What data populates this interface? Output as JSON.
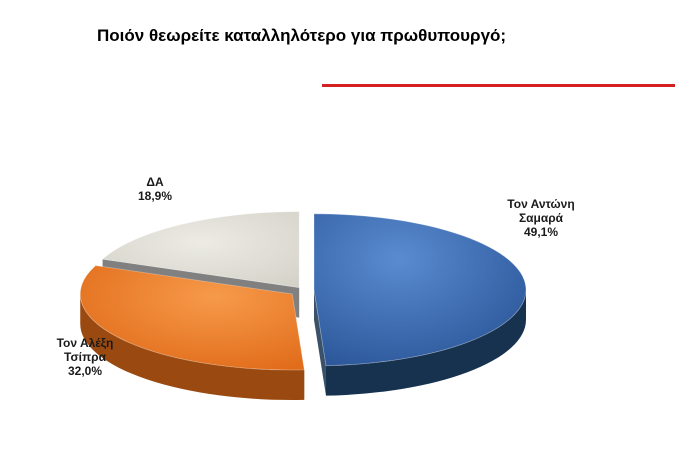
{
  "title": "Ποιόν θεωρείτε καταλληλότερο για πρωθυπουργό;",
  "colors": {
    "rule": "#d42020"
  },
  "chart_data": {
    "type": "pie",
    "title": "Ποιόν θεωρείτε καταλληλότερο για πρωθυπουργό;",
    "slices": [
      {
        "label": [
          "Τον Αντώνη",
          "Σαμαρά"
        ],
        "value": 49.1,
        "value_label": "49,1%",
        "color": "#3a6cb4",
        "dark": "#17324f"
      },
      {
        "label": [
          "Τον Αλέξη",
          "Τσίπρα"
        ],
        "value": 32.0,
        "value_label": "32,0%",
        "color": "#ec7a28",
        "dark": "#9a4a10"
      },
      {
        "label": [
          "ΔΑ"
        ],
        "value": 18.9,
        "value_label": "18,9%",
        "color": "#dcdad2",
        "dark": "#6a6a6a"
      }
    ],
    "style": "3d-exploded"
  }
}
